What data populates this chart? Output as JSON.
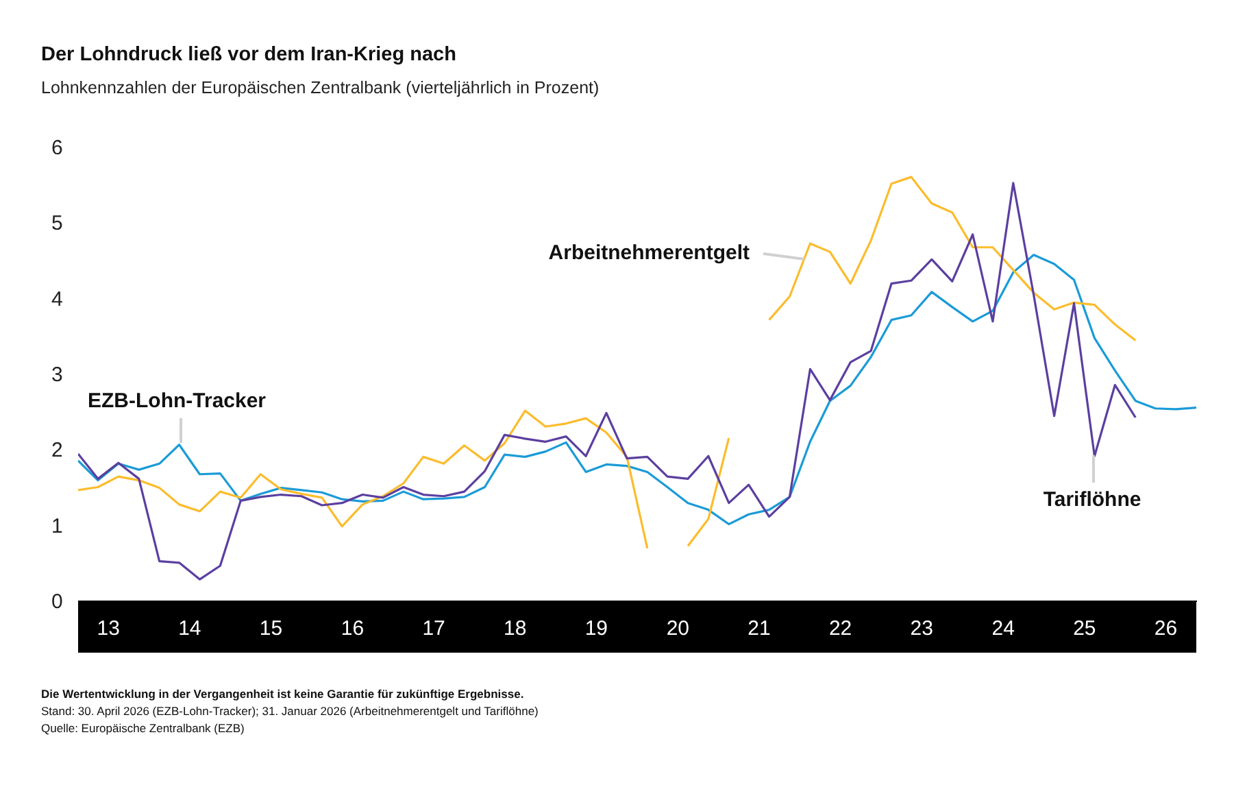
{
  "chart_data": {
    "type": "line",
    "title": "Der Lohndruck ließ vor dem Iran-Krieg nach",
    "subtitle": "Lohnkennzahlen der Europäischen Zentralbank (vierteljährlich in Prozent)",
    "x": [
      "2013-02-15",
      "2013-05-15",
      "2013-08-15",
      "2013-11-15",
      "2014-02-15",
      "2014-05-15",
      "2014-08-15",
      "2014-11-15",
      "2015-02-15",
      "2015-05-15",
      "2015-08-15",
      "2015-11-15",
      "2016-02-15",
      "2016-05-15",
      "2016-08-15",
      "2016-11-15",
      "2017-02-15",
      "2017-05-15",
      "2017-08-15",
      "2017-11-15",
      "2018-02-15",
      "2018-05-15",
      "2018-08-15",
      "2018-11-15",
      "2019-02-15",
      "2019-05-15",
      "2019-08-15",
      "2019-11-15",
      "2020-02-15",
      "2020-05-15",
      "2020-08-15",
      "2020-11-15",
      "2021-02-15",
      "2021-05-15",
      "2021-08-15",
      "2021-11-15",
      "2022-02-15",
      "2022-05-15",
      "2022-08-15",
      "2022-11-15",
      "2023-02-15",
      "2023-05-15",
      "2023-08-15",
      "2023-11-15",
      "2024-02-15",
      "2024-05-15",
      "2024-08-15",
      "2024-11-15",
      "2025-02-15",
      "2025-05-15",
      "2025-08-15",
      "2025-11-15",
      "2026-02-15",
      "2026-05-15",
      "2026-08-15",
      "2026-11-15"
    ],
    "series": [
      {
        "name": "EZB-Lohn-Tracker",
        "color": "#1a9bd7",
        "values": [
          1.85,
          1.59,
          1.81,
          1.73,
          1.81,
          2.06,
          1.67,
          1.68,
          1.32,
          1.41,
          1.49,
          1.46,
          1.43,
          1.34,
          1.31,
          1.32,
          1.44,
          1.34,
          1.35,
          1.37,
          1.5,
          1.93,
          1.9,
          1.97,
          2.09,
          1.7,
          1.8,
          1.78,
          1.7,
          1.5,
          1.29,
          1.2,
          1.01,
          1.14,
          1.2,
          1.37,
          2.1,
          2.64,
          2.84,
          3.22,
          3.71,
          3.77,
          4.08,
          3.88,
          3.69,
          3.83,
          4.34,
          4.57,
          4.45,
          4.24,
          3.47,
          3.04,
          2.64,
          2.54,
          2.53,
          2.55
        ]
      },
      {
        "name": "Arbeitnehmerentgelt",
        "color": "#fbbc2c",
        "values": [
          1.46,
          1.5,
          1.64,
          1.59,
          1.49,
          1.27,
          1.18,
          1.44,
          1.36,
          1.67,
          1.47,
          1.41,
          1.36,
          0.98,
          1.27,
          1.38,
          1.55,
          1.9,
          1.81,
          2.05,
          1.85,
          2.08,
          2.51,
          2.3,
          2.34,
          2.41,
          2.22,
          1.9,
          0.69,
          null,
          0.72,
          1.08,
          2.15,
          null,
          3.71,
          4.02,
          4.72,
          4.61,
          4.19,
          4.76,
          5.51,
          5.6,
          5.25,
          5.13,
          4.67,
          4.67,
          4.37,
          4.07,
          3.85,
          3.94,
          3.91,
          3.65,
          3.44,
          null,
          null,
          null
        ]
      },
      {
        "name": "Tariflöhne",
        "color": "#5b3fa0",
        "values": [
          1.94,
          1.61,
          1.82,
          1.61,
          0.52,
          0.5,
          0.28,
          0.46,
          1.32,
          1.37,
          1.4,
          1.38,
          1.26,
          1.29,
          1.4,
          1.36,
          1.5,
          1.4,
          1.38,
          1.44,
          1.71,
          2.19,
          2.14,
          2.1,
          2.17,
          1.91,
          2.48,
          1.88,
          1.9,
          1.64,
          1.61,
          1.91,
          1.29,
          1.53,
          1.11,
          1.37,
          3.06,
          2.65,
          3.15,
          3.3,
          4.19,
          4.23,
          4.51,
          4.22,
          4.84,
          3.69,
          5.52,
          4.04,
          2.44,
          3.93,
          1.91,
          2.85,
          2.42,
          null,
          null,
          null
        ]
      }
    ],
    "xlim": [
      "2013-02-15",
      "2026-11-15"
    ],
    "xticks": [
      {
        "value": "2013-07-01",
        "label": "13"
      },
      {
        "value": "2014-07-01",
        "label": "14"
      },
      {
        "value": "2015-07-01",
        "label": "15"
      },
      {
        "value": "2016-07-01",
        "label": "16"
      },
      {
        "value": "2017-07-01",
        "label": "17"
      },
      {
        "value": "2018-07-01",
        "label": "18"
      },
      {
        "value": "2019-07-01",
        "label": "19"
      },
      {
        "value": "2020-07-01",
        "label": "20"
      },
      {
        "value": "2021-07-01",
        "label": "21"
      },
      {
        "value": "2022-07-01",
        "label": "22"
      },
      {
        "value": "2023-07-01",
        "label": "23"
      },
      {
        "value": "2024-07-01",
        "label": "24"
      },
      {
        "value": "2025-07-01",
        "label": "25"
      },
      {
        "value": "2026-07-01",
        "label": "26"
      }
    ],
    "ylim": [
      0,
      6
    ],
    "yticks": [
      0,
      1,
      2,
      3,
      4,
      5,
      6
    ],
    "grid": false,
    "legend": false,
    "annotations": [
      "Die Wertentwicklung in der Vergangenheit ist keine Garantie für zukünftige Ergebnisse.",
      "Stand: 30. April 2026 (EZB-Lohn-Tracker); 31. Januar 2026  (Arbeitnehmerentgelt und Tariflöhne)",
      "Quelle: Europäische Zentralbank (EZB)"
    ]
  }
}
